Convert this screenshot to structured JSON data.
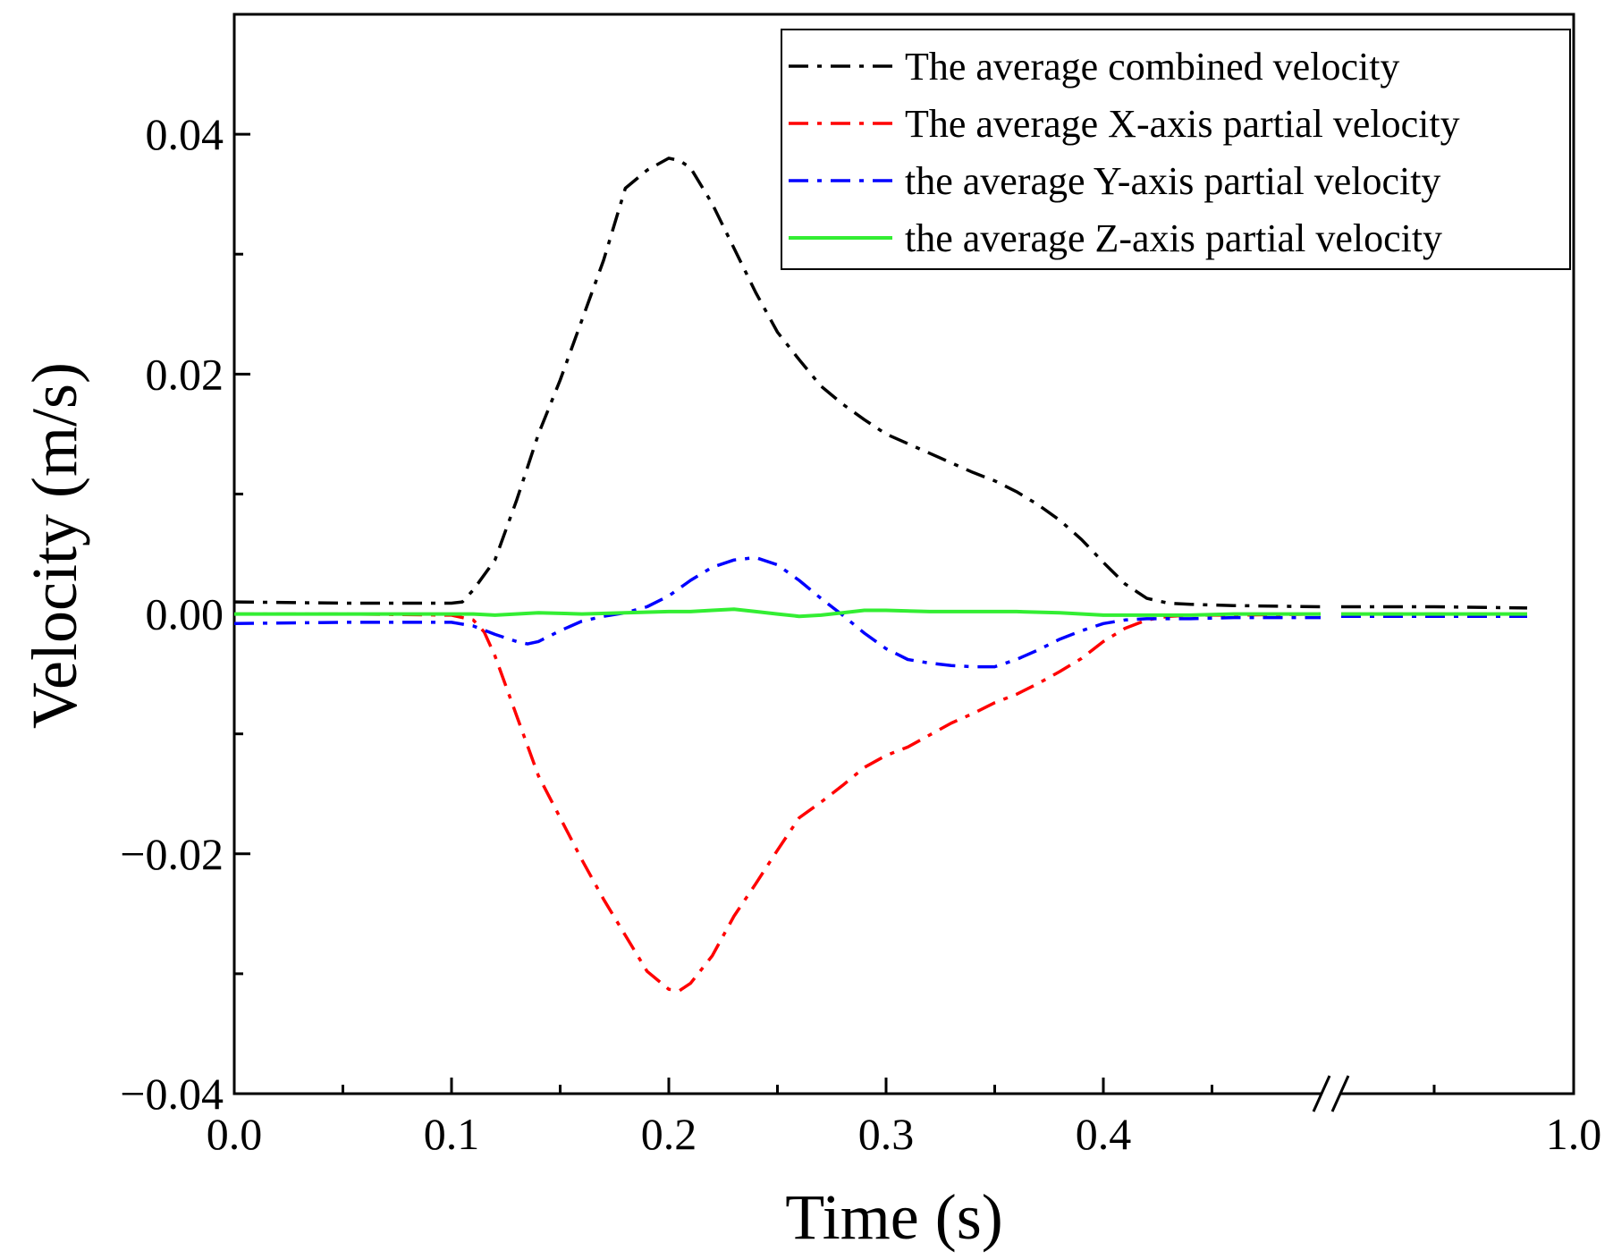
{
  "chart_data": {
    "type": "line",
    "title": "",
    "xlabel": "Time (s)",
    "ylabel": "Velocity (m/s)",
    "xlim_main": [
      0.0,
      0.5
    ],
    "xlim_break": [
      0.95,
      1.0
    ],
    "ylim": [
      -0.04,
      0.05
    ],
    "axis_break": true,
    "grid": false,
    "legend_position": "top-right",
    "x_ticks": [
      {
        "value": 0.0,
        "label": "0.0"
      },
      {
        "value": 0.1,
        "label": "0.1"
      },
      {
        "value": 0.2,
        "label": "0.2"
      },
      {
        "value": 0.3,
        "label": "0.3"
      },
      {
        "value": 0.4,
        "label": "0.4"
      },
      {
        "value": 1.0,
        "label": "1.0"
      }
    ],
    "x_minor_ticks": [
      0.05,
      0.15,
      0.25,
      0.35,
      0.45,
      0.97
    ],
    "y_ticks": [
      {
        "value": 0.04,
        "label": "0.04"
      },
      {
        "value": 0.02,
        "label": "0.02"
      },
      {
        "value": 0.0,
        "label": "0.00"
      },
      {
        "value": -0.02,
        "label": "−0.02"
      },
      {
        "value": -0.04,
        "label": "−0.04"
      }
    ],
    "y_minor_ticks": [
      0.03,
      0.01,
      -0.01,
      -0.03
    ],
    "series": [
      {
        "name": "The average combined velocity",
        "color": "#000000",
        "style": "dash-dot",
        "x": [
          0.0,
          0.05,
          0.1,
          0.105,
          0.11,
          0.12,
          0.13,
          0.14,
          0.15,
          0.16,
          0.17,
          0.18,
          0.19,
          0.2,
          0.205,
          0.21,
          0.22,
          0.23,
          0.24,
          0.25,
          0.26,
          0.27,
          0.28,
          0.29,
          0.3,
          0.31,
          0.32,
          0.33,
          0.34,
          0.35,
          0.36,
          0.37,
          0.38,
          0.39,
          0.4,
          0.41,
          0.42,
          0.43,
          0.44,
          0.46,
          0.5,
          0.95,
          0.97,
          0.99
        ],
        "y": [
          0.001,
          0.0009,
          0.0009,
          0.001,
          0.002,
          0.0045,
          0.0095,
          0.015,
          0.0195,
          0.0245,
          0.0295,
          0.0355,
          0.037,
          0.038,
          0.0378,
          0.0372,
          0.0342,
          0.0305,
          0.0268,
          0.0235,
          0.0212,
          0.019,
          0.0175,
          0.0162,
          0.015,
          0.0142,
          0.0134,
          0.0126,
          0.0118,
          0.0111,
          0.0102,
          0.0091,
          0.0078,
          0.0062,
          0.0043,
          0.0025,
          0.0013,
          0.0009,
          0.0008,
          0.0007,
          0.0006,
          0.0006,
          0.0006,
          0.0005
        ]
      },
      {
        "name": "The average X-axis partial velocity",
        "color": "#ff0000",
        "style": "dash-dot",
        "x": [
          0.0,
          0.05,
          0.1,
          0.11,
          0.115,
          0.12,
          0.13,
          0.14,
          0.15,
          0.16,
          0.17,
          0.18,
          0.19,
          0.2,
          0.205,
          0.21,
          0.22,
          0.23,
          0.24,
          0.25,
          0.26,
          0.27,
          0.28,
          0.29,
          0.3,
          0.31,
          0.32,
          0.33,
          0.34,
          0.35,
          0.36,
          0.37,
          0.38,
          0.39,
          0.4,
          0.41,
          0.42,
          0.43,
          0.44,
          0.46,
          0.5,
          0.95,
          0.97,
          0.99
        ],
        "y": [
          0.0,
          0.0,
          -0.0001,
          -0.0005,
          -0.0015,
          -0.0035,
          -0.0085,
          -0.0135,
          -0.017,
          -0.0205,
          -0.0238,
          -0.0268,
          -0.0298,
          -0.0313,
          -0.0314,
          -0.0308,
          -0.0285,
          -0.0252,
          -0.0225,
          -0.0197,
          -0.017,
          -0.0157,
          -0.0143,
          -0.0128,
          -0.0118,
          -0.0111,
          -0.0101,
          -0.0091,
          -0.0083,
          -0.0074,
          -0.0067,
          -0.0058,
          -0.0048,
          -0.0037,
          -0.0023,
          -0.0012,
          -0.0005,
          -0.0002,
          -0.0001,
          -0.0001,
          0.0,
          0.0,
          0.0,
          0.0
        ]
      },
      {
        "name": "the average Y-axis partial velocity",
        "color": "#0000ff",
        "style": "dash-dot",
        "x": [
          0.0,
          0.05,
          0.1,
          0.11,
          0.12,
          0.13,
          0.135,
          0.14,
          0.15,
          0.16,
          0.17,
          0.18,
          0.19,
          0.2,
          0.21,
          0.22,
          0.23,
          0.24,
          0.25,
          0.26,
          0.27,
          0.28,
          0.29,
          0.3,
          0.31,
          0.32,
          0.33,
          0.34,
          0.345,
          0.35,
          0.36,
          0.37,
          0.38,
          0.39,
          0.4,
          0.41,
          0.42,
          0.44,
          0.46,
          0.5,
          0.95,
          0.99
        ],
        "y": [
          -0.0008,
          -0.0007,
          -0.0007,
          -0.001,
          -0.0017,
          -0.0023,
          -0.0025,
          -0.0023,
          -0.0014,
          -0.0006,
          -0.0002,
          0.0001,
          0.0006,
          0.0015,
          0.0028,
          0.0039,
          0.0045,
          0.0047,
          0.0041,
          0.0028,
          0.0013,
          -0.0001,
          -0.0016,
          -0.0029,
          -0.0038,
          -0.0041,
          -0.0043,
          -0.0044,
          -0.0044,
          -0.0044,
          -0.0038,
          -0.003,
          -0.0021,
          -0.0014,
          -0.0008,
          -0.0005,
          -0.0004,
          -0.0004,
          -0.0003,
          -0.0003,
          -0.0002,
          -0.0002
        ]
      },
      {
        "name": "the average Z-axis partial velocity",
        "color": "#33ee33",
        "style": "solid",
        "x": [
          0.0,
          0.05,
          0.1,
          0.11,
          0.12,
          0.14,
          0.16,
          0.18,
          0.2,
          0.21,
          0.22,
          0.23,
          0.24,
          0.25,
          0.26,
          0.27,
          0.28,
          0.29,
          0.3,
          0.32,
          0.34,
          0.36,
          0.38,
          0.4,
          0.42,
          0.44,
          0.46,
          0.5,
          0.95,
          0.99
        ],
        "y": [
          0.0,
          0.0,
          0.0,
          0.0,
          -0.0001,
          0.0001,
          0.0,
          0.0001,
          0.0002,
          0.0002,
          0.0003,
          0.0004,
          0.0002,
          0.0,
          -0.0002,
          -0.0001,
          0.0001,
          0.0003,
          0.0003,
          0.0002,
          0.0002,
          0.0002,
          0.0001,
          -0.0001,
          -0.0001,
          -0.0001,
          0.0,
          0.0,
          0.0,
          0.0
        ]
      }
    ]
  }
}
